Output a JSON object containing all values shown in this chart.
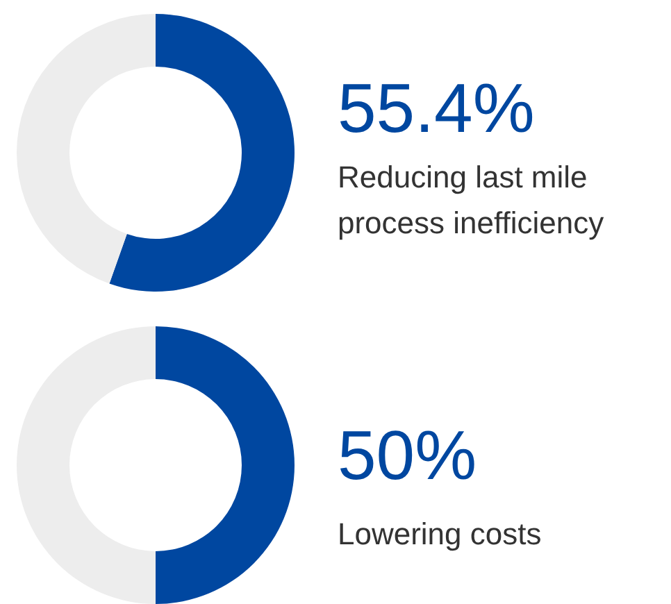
{
  "chart_data": [
    {
      "type": "donut",
      "categories": [
        "Reducing last mile process inefficiency",
        null
      ],
      "values": [
        55.4,
        44.6
      ],
      "colors": [
        "#0047a0",
        "#ededed"
      ],
      "value_labels": [
        "55.4%",
        null
      ]
    },
    {
      "type": "donut",
      "categories": [
        "Lowering costs",
        null
      ],
      "values": [
        50,
        50
      ],
      "colors": [
        "#0047a0",
        "#ededed"
      ],
      "value_labels": [
        "50%",
        null
      ]
    }
  ]
}
